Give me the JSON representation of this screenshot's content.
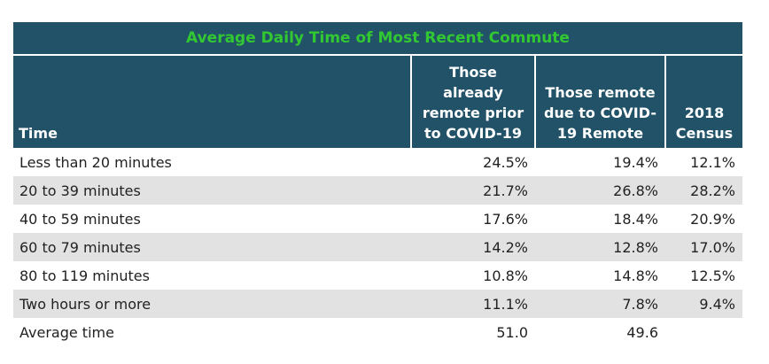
{
  "chart_data": {
    "type": "table",
    "title": "Average Daily Time of Most Recent Commute",
    "columns": [
      "Time",
      "Those already remote prior to COVID-19",
      "Those remote due to COVID-19 Remote",
      "2018 Census"
    ],
    "rows": [
      {
        "label": "Less than 20 minutes",
        "values": [
          "24.5%",
          "19.4%",
          "12.1%"
        ]
      },
      {
        "label": "20 to 39 minutes",
        "values": [
          "21.7%",
          "26.8%",
          "28.2%"
        ]
      },
      {
        "label": "40 to 59 minutes",
        "values": [
          "17.6%",
          "18.4%",
          "20.9%"
        ]
      },
      {
        "label": "60 to 79 minutes",
        "values": [
          "14.2%",
          "12.8%",
          "17.0%"
        ]
      },
      {
        "label": "80 to 119 minutes",
        "values": [
          "10.8%",
          "14.8%",
          "12.5%"
        ]
      },
      {
        "label": "Two hours or more",
        "values": [
          "11.1%",
          "7.8%",
          "9.4%"
        ]
      },
      {
        "label": "Average time",
        "values": [
          "51.0",
          "49.6",
          ""
        ]
      }
    ],
    "colors": {
      "header_bg": "#215268",
      "title_text": "#32c832",
      "header_text": "#ffffff",
      "stripe_bg": "#e2e2e2"
    }
  }
}
